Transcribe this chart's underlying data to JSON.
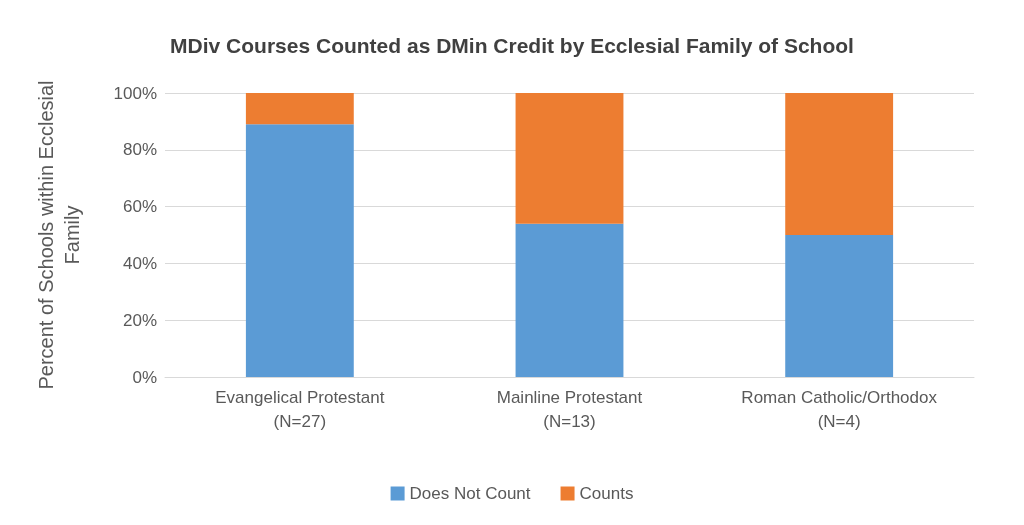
{
  "chart_data": {
    "type": "bar",
    "title": "MDiv Courses Counted as DMin Credit by Ecclesial Family of School",
    "ylabel": "Percent of Schools within Ecclesial\nFamily",
    "categories": [
      "Evangelical Protestant\n(N=27)",
      "Mainline Protestant\n(N=13)",
      "Roman Catholic/Orthodox\n(N=4)"
    ],
    "series": [
      {
        "name": "Does Not Count",
        "color": "#5b9bd5",
        "values": [
          89,
          54,
          50
        ]
      },
      {
        "name": "Counts",
        "color": "#ed7d31",
        "values": [
          11,
          46,
          50
        ]
      }
    ],
    "stacked": true,
    "ylim": [
      0,
      100
    ],
    "yticks": [
      {
        "value": 0,
        "label": "0%"
      },
      {
        "value": 20,
        "label": "20%"
      },
      {
        "value": 40,
        "label": "40%"
      },
      {
        "value": 60,
        "label": "60%"
      },
      {
        "value": 80,
        "label": "80%"
      },
      {
        "value": 100,
        "label": "100%"
      }
    ],
    "grid": "y",
    "legend": "bottom"
  }
}
